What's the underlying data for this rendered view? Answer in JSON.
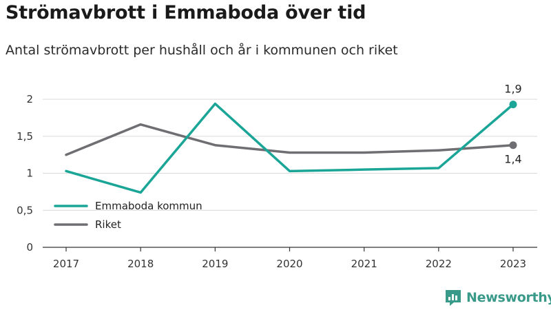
{
  "header": {
    "title": "Strömavbrott i Emmaboda över tid",
    "subtitle": "Antal strömavbrott per hushåll och år i kommunen och riket"
  },
  "branding": {
    "logo_text": "Newsworthy",
    "logo_icon": "newsworthy-chart-logo-icon",
    "logo_color": "#3a9a8a"
  },
  "chart_data": {
    "type": "line",
    "x": [
      "2017",
      "2018",
      "2019",
      "2020",
      "2021",
      "2022",
      "2023"
    ],
    "series": [
      {
        "name": "Emmaboda kommun",
        "color": "#1aa596",
        "values": [
          1.03,
          0.74,
          1.94,
          1.03,
          1.05,
          1.07,
          1.93
        ],
        "end_label": "1,9"
      },
      {
        "name": "Riket",
        "color": "#6e6e73",
        "values": [
          1.25,
          1.66,
          1.38,
          1.28,
          1.28,
          1.31,
          1.38
        ],
        "end_label": "1,4"
      }
    ],
    "yticks": [
      {
        "value": 0,
        "label": "0"
      },
      {
        "value": 0.5,
        "label": "0,5"
      },
      {
        "value": 1,
        "label": "1"
      },
      {
        "value": 1.5,
        "label": "1,5"
      },
      {
        "value": 2,
        "label": "2"
      }
    ],
    "ylim": [
      0,
      2.15
    ],
    "grid": true,
    "legend_position": "bottom-left"
  }
}
